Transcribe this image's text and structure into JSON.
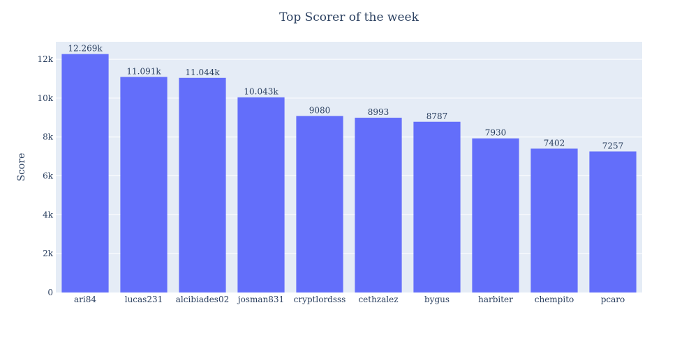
{
  "chart_data": {
    "type": "bar",
    "title": "Top Scorer of the week",
    "xlabel": "",
    "ylabel": "Score",
    "categories": [
      "ari84",
      "lucas231",
      "alcibiades02",
      "josman831",
      "cryptlordsss",
      "cethzalez",
      "bygus",
      "harbiter",
      "chempito",
      "pcaro"
    ],
    "values": [
      12269,
      11091,
      11044,
      10043,
      9080,
      8993,
      8787,
      7930,
      7402,
      7257
    ],
    "data_labels": [
      "12.269k",
      "11.091k",
      "11.044k",
      "10.043k",
      "9080",
      "8993",
      "8787",
      "7930",
      "7402",
      "7257"
    ],
    "ylim": [
      0,
      12900
    ],
    "yticks": [
      0,
      2000,
      4000,
      6000,
      8000,
      10000,
      12000
    ],
    "ytick_labels": [
      "0",
      "2k",
      "4k",
      "6k",
      "8k",
      "10k",
      "12k"
    ],
    "grid": true,
    "legend": "none"
  },
  "colors": {
    "bar": "#636efa",
    "plot_background": "#e5ecf6",
    "grid": "#ffffff",
    "text": "#2a3f5f"
  }
}
